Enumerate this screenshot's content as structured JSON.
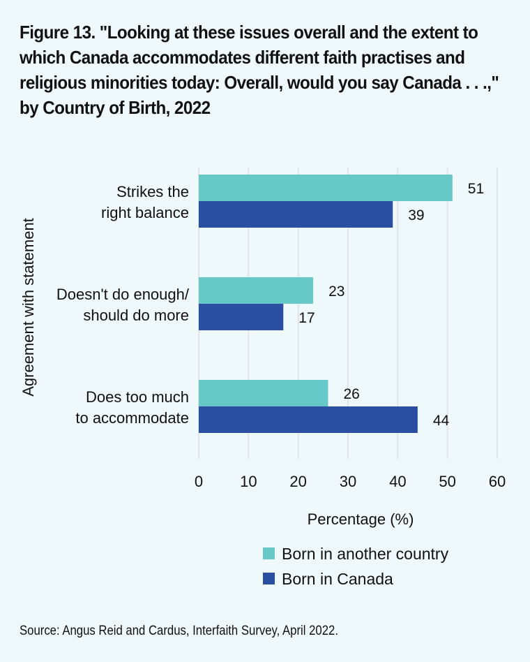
{
  "title": "Figure 13. \"Looking at these issues overall and the extent to which Canada accommodates different faith practises and religious minorities today: Overall, would you say Canada . . .,\" by Country of Birth, 2022",
  "source": "Source: Angus Reid and Cardus, Interfaith Survey, April 2022.",
  "colors": {
    "background": "#eff8fa",
    "gridline": "#e2e4e6",
    "series_other_country": "#67c8c8",
    "series_canada": "#2b4fa0"
  },
  "chart_data": {
    "type": "bar",
    "orientation": "horizontal",
    "title": "Figure 13. \"Looking at these issues overall and the extent to which Canada accommodates different faith practises and religious minorities today: Overall, would you say Canada . . .,\" by Country of Birth, 2022",
    "categories": [
      [
        "Strikes the",
        "right balance"
      ],
      [
        "Doesn't do enough/",
        "should do more"
      ],
      [
        "Does too much",
        "to accommodate"
      ]
    ],
    "series": [
      {
        "name": "Born in another country",
        "color": "#67c8c8",
        "values": [
          51,
          23,
          26
        ]
      },
      {
        "name": "Born in Canada",
        "color": "#2b4fa0",
        "values": [
          39,
          17,
          44
        ]
      }
    ],
    "xlabel": "Percentage (%)",
    "ylabel": "Agreement with statement",
    "xlim": [
      0,
      60
    ],
    "xticks": [
      0,
      10,
      20,
      30,
      40,
      50,
      60
    ],
    "grid": "vertical",
    "legend": "bottom-center",
    "data_labels": true
  }
}
